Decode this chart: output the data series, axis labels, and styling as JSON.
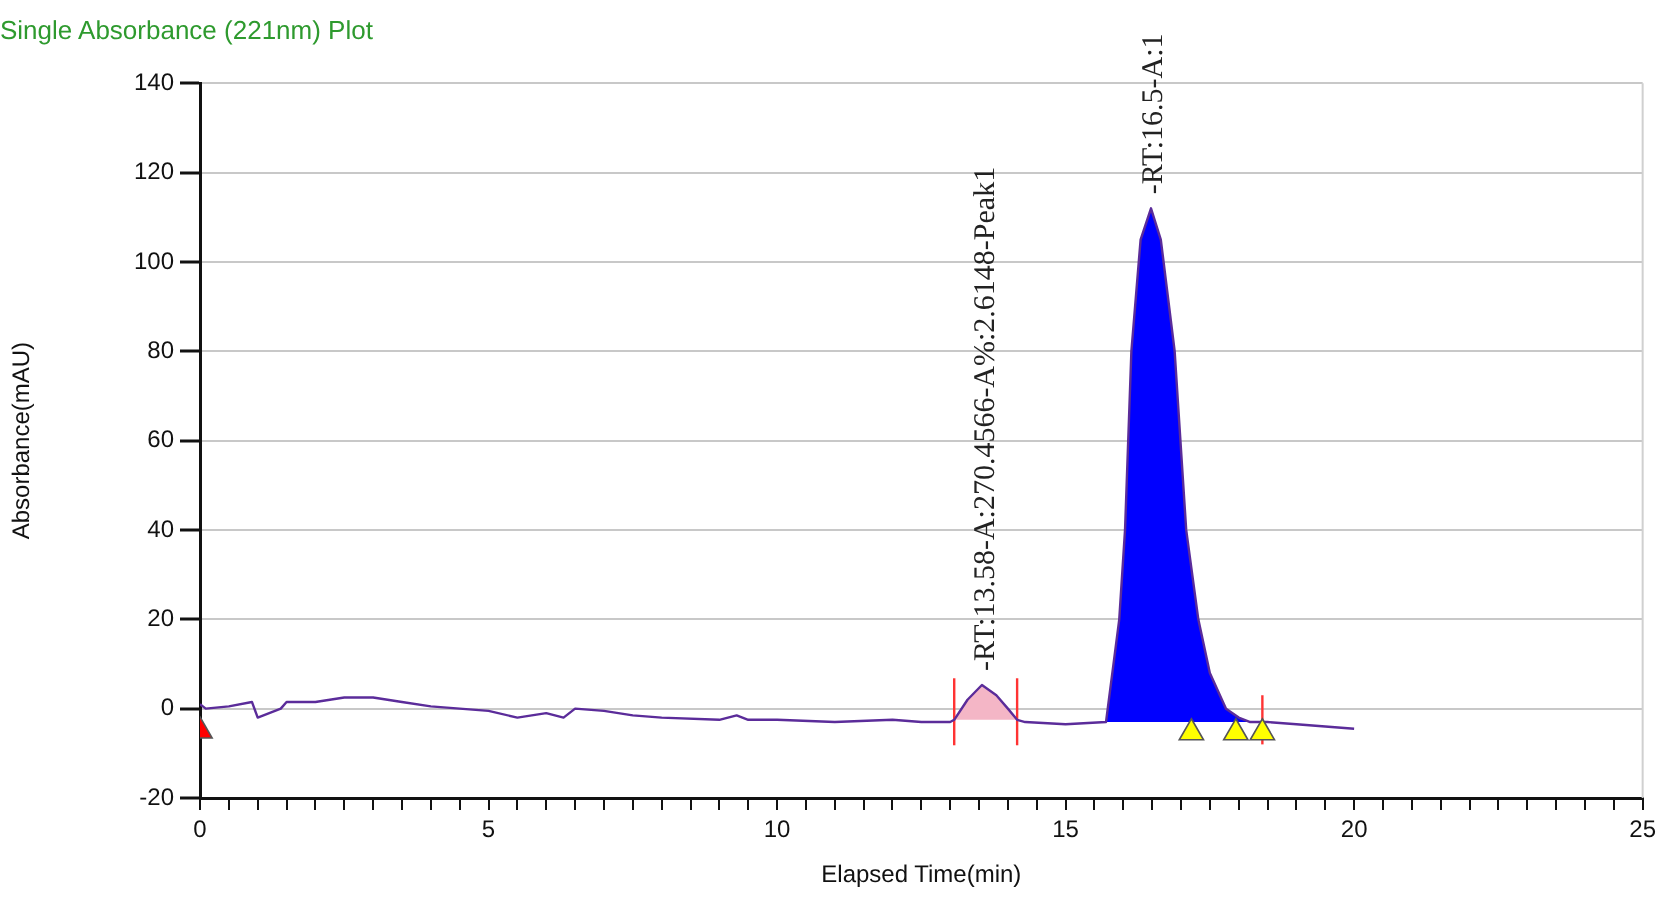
{
  "chart_data": {
    "type": "line",
    "title": "Single Absorbance (221nm) Plot",
    "xlabel": "Elapsed Time(min)",
    "ylabel": "Absorbance(mAU)",
    "xlim": [
      0,
      25
    ],
    "xticks": [
      0,
      {
        "value": 0.5,
        "label": null
      },
      {
        "value": 1,
        "label": null
      },
      {
        "value": 1.5,
        "label": null
      },
      {
        "value": 2,
        "label": null
      },
      {
        "value": 2.5,
        "label": null
      },
      {
        "value": 3,
        "label": null
      },
      {
        "value": 3.5,
        "label": null
      },
      {
        "value": 4,
        "label": null
      },
      {
        "value": 4.5,
        "label": null
      },
      5,
      {
        "value": 5.5,
        "label": null
      },
      {
        "value": 6,
        "label": null
      },
      {
        "value": 6.5,
        "label": null
      },
      {
        "value": 7,
        "label": null
      },
      {
        "value": 7.5,
        "label": null
      },
      {
        "value": 8,
        "label": null
      },
      {
        "value": 8.5,
        "label": null
      },
      {
        "value": 9,
        "label": null
      },
      {
        "value": 9.5,
        "label": null
      },
      10,
      {
        "value": 10.5,
        "label": null
      },
      {
        "value": 11,
        "label": null
      },
      {
        "value": 11.5,
        "label": null
      },
      {
        "value": 12,
        "label": null
      },
      {
        "value": 12.5,
        "label": null
      },
      {
        "value": 13,
        "label": null
      },
      {
        "value": 13.5,
        "label": null
      },
      {
        "value": 14,
        "label": null
      },
      {
        "value": 14.5,
        "label": null
      },
      15,
      {
        "value": 15.5,
        "label": null
      },
      {
        "value": 16,
        "label": null
      },
      {
        "value": 16.5,
        "label": null
      },
      {
        "value": 17,
        "label": null
      },
      {
        "value": 17.5,
        "label": null
      },
      {
        "value": 18,
        "label": null
      },
      {
        "value": 18.5,
        "label": null
      },
      {
        "value": 19,
        "label": null
      },
      {
        "value": 19.5,
        "label": null
      },
      20,
      {
        "value": 20.5,
        "label": null
      },
      {
        "value": 21,
        "label": null
      },
      {
        "value": 21.5,
        "label": null
      },
      {
        "value": 22,
        "label": null
      },
      {
        "value": 22.5,
        "label": null
      },
      {
        "value": 23,
        "label": null
      },
      {
        "value": 23.5,
        "label": null
      },
      {
        "value": 24,
        "label": null
      },
      {
        "value": 24.5,
        "label": null
      },
      25
    ],
    "ylim": [
      -20,
      140
    ],
    "yticks": [
      -20,
      0,
      20,
      40,
      60,
      80,
      100,
      120,
      140
    ],
    "grid": "y",
    "series": [
      {
        "type": "area",
        "color": "#f4b6c6",
        "x": [
          13.07,
          13.3,
          13.55,
          13.8,
          14.0,
          14.16
        ],
        "values": [
          -2.5,
          2,
          5.3,
          3,
          0,
          -2.5
        ]
      },
      {
        "type": "area",
        "color": "#0000ff",
        "x": [
          15.7,
          15.93,
          16.03,
          16.14,
          16.3,
          16.48,
          16.65,
          16.89,
          17.09,
          17.3,
          17.5,
          17.78,
          18.0,
          18.2
        ],
        "values": [
          -3,
          20,
          40,
          80,
          105,
          112,
          105,
          80,
          40,
          20,
          8,
          0,
          -2,
          -3
        ]
      },
      {
        "color": "#5b2c9a",
        "x": [
          0,
          0.1,
          0.5,
          0.9,
          1.0,
          1.2,
          1.4,
          1.5,
          2,
          2.5,
          3,
          3.5,
          4,
          5,
          5.5,
          6,
          6.3,
          6.5,
          7,
          7.5,
          8,
          9,
          9.3,
          9.5,
          10,
          11,
          12,
          12.5,
          13,
          13.07,
          13.3,
          13.55,
          13.8,
          14.0,
          14.16,
          14.3,
          15,
          15.7,
          15.93,
          16.03,
          16.14,
          16.3,
          16.48,
          16.65,
          16.89,
          17.09,
          17.3,
          17.5,
          17.78,
          18.0,
          18.2,
          18.5,
          19,
          19.5,
          20
        ],
        "values": [
          1,
          0,
          0.5,
          1.5,
          -2,
          -1,
          0,
          1.5,
          1.5,
          2.5,
          2.5,
          1.5,
          0.5,
          -0.5,
          -2,
          -1,
          -2,
          0,
          -0.5,
          -1.5,
          -2,
          -2.5,
          -1.5,
          -2.5,
          -2.5,
          -3,
          -2.5,
          -3,
          -3,
          -2.5,
          2,
          5.3,
          3,
          0,
          -2.5,
          -3,
          -3.5,
          -3,
          20,
          40,
          80,
          105,
          112,
          105,
          80,
          40,
          20,
          8,
          0,
          -2,
          -3,
          -3,
          -3.5,
          -4,
          -4.5
        ]
      },
      {
        "type": "line",
        "color": "#ff3333",
        "x": [
          13.07,
          13.07
        ],
        "values": [
          -8.2,
          6.8
        ]
      },
      {
        "type": "line",
        "color": "#ff3333",
        "x": [
          14.16,
          14.16
        ],
        "values": [
          -8.2,
          6.8
        ]
      },
      {
        "type": "line",
        "color": "#ff3333",
        "x": [
          18.41,
          18.41
        ],
        "values": [
          -8,
          3
        ]
      },
      {
        "type": "scatter",
        "color": "#ffff00",
        "marker": "triangle",
        "x": [
          17.18,
          17.95,
          18.41
        ],
        "values": [
          -5.4,
          -5.4,
          -5.4
        ]
      },
      {
        "type": "scatter",
        "color": "#ff0000",
        "marker": "triangle",
        "x": [
          0
        ],
        "values": [
          -5
        ]
      }
    ],
    "annotations": [
      {
        "text": "-RT:13.58-A:270.4566-A%:2.6148-Peak1",
        "x": 13.58,
        "y": 5.3
      },
      {
        "text": "-RT:16.5-A:1",
        "x": 16.5,
        "y": 112
      }
    ]
  }
}
